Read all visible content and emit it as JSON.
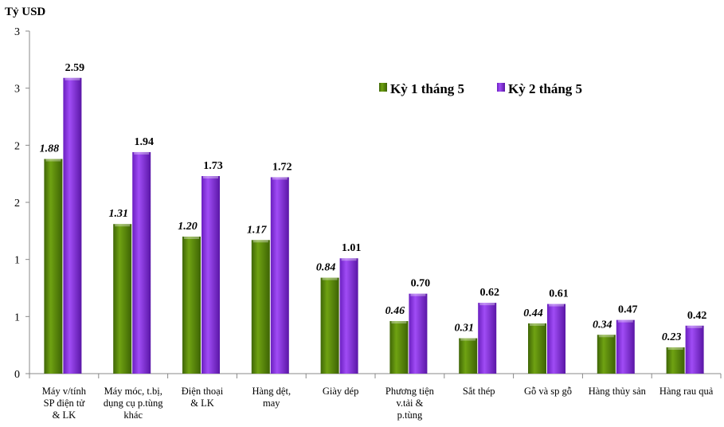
{
  "chart_data": {
    "type": "bar",
    "ylabel": "Tỷ USD",
    "ylim": [
      0,
      3
    ],
    "ytick_values": [
      0,
      0.5,
      1,
      1.5,
      2,
      2.5,
      3
    ],
    "ytick_labels": [
      "0",
      "1",
      "1",
      "2",
      "2",
      "3",
      "3"
    ],
    "grid": false,
    "legend_position": "top-right",
    "categories": [
      [
        "Máy v/tính",
        "SP điện tử",
        "& LK"
      ],
      [
        "Máy móc, t.bị,",
        "dụng cụ p.tùng",
        "khác"
      ],
      [
        "Điện thoại",
        "& LK"
      ],
      [
        "Hàng dệt,",
        "may"
      ],
      [
        "Giày dép"
      ],
      [
        "Phương tiện",
        "v.tải &",
        "p.tùng"
      ],
      [
        "Sắt thép"
      ],
      [
        "Gỗ và sp gỗ"
      ],
      [
        "Hàng thủy sản"
      ],
      [
        "Hàng rau quả"
      ]
    ],
    "series": [
      {
        "name": "Kỳ 1 tháng 5",
        "color": "#5b8c0a",
        "labels": [
          "1.88",
          "1.31",
          "1.20",
          "1.17",
          "0.84",
          "0.46",
          "0.31",
          "0.44",
          "0.34",
          "0.23"
        ],
        "values": [
          1.88,
          1.31,
          1.2,
          1.17,
          0.84,
          0.46,
          0.31,
          0.44,
          0.34,
          0.23
        ]
      },
      {
        "name": "Kỳ 2 tháng 5",
        "color": "#8a2be2",
        "labels": [
          "2.59",
          "1.94",
          "1.73",
          "1.72",
          "1.01",
          "0.70",
          "0.62",
          "0.61",
          "0.47",
          "0.42"
        ],
        "values": [
          2.59,
          1.94,
          1.73,
          1.72,
          1.01,
          0.7,
          0.62,
          0.61,
          0.47,
          0.42
        ]
      }
    ]
  }
}
